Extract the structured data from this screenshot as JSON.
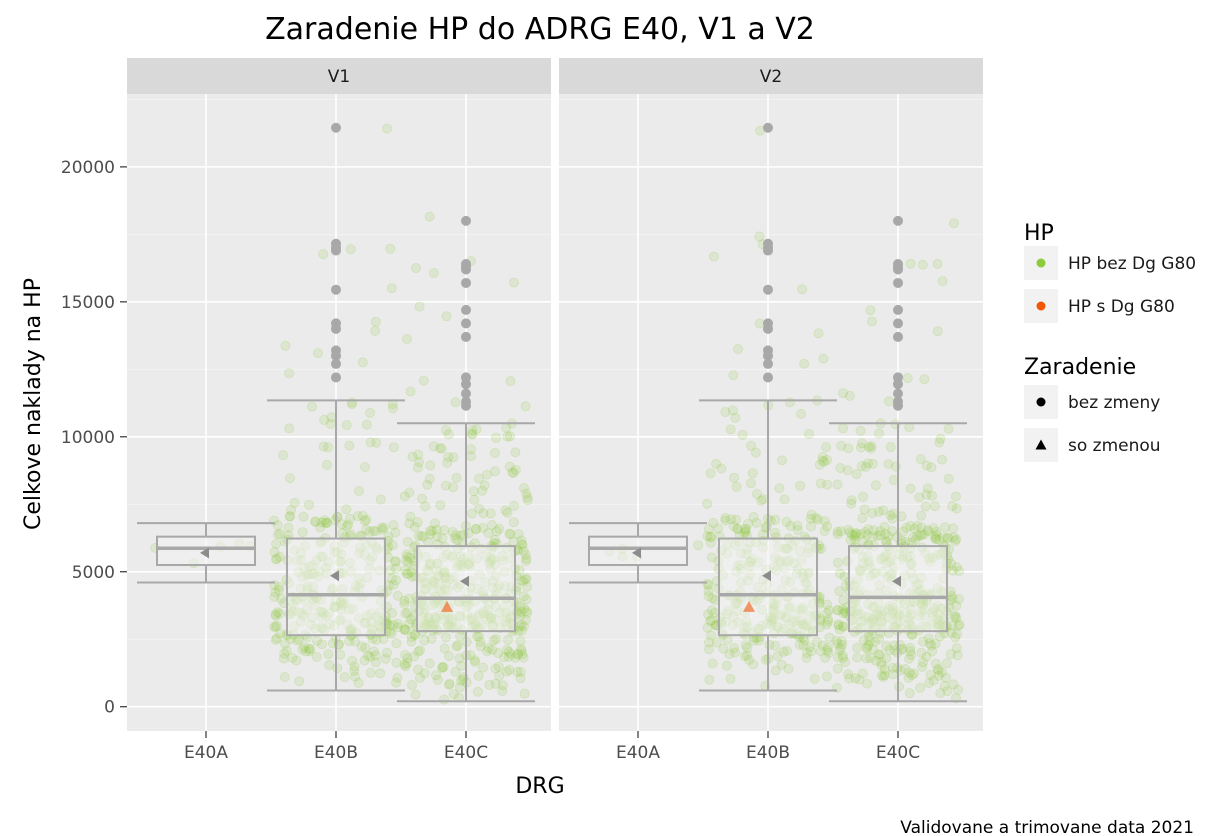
{
  "chart_data": {
    "type": "box",
    "title": "Zaradenie HP do ADRG E40, V1 a V2",
    "xlabel": "DRG",
    "ylabel": "Celkove naklady na HP",
    "caption": "Validovane a trimovane data 2021",
    "ylim": [
      -900,
      22700
    ],
    "yticks": [
      0,
      5000,
      10000,
      15000,
      20000
    ],
    "categories": [
      "E40A",
      "E40B",
      "E40C"
    ],
    "grid": true,
    "legend_placement": "right",
    "panels": [
      {
        "name": "V1",
        "boxes": [
          {
            "category": "E40A",
            "lower_whisker": 4600,
            "q1": 5250,
            "median": 5870,
            "q3": 6300,
            "upper_whisker": 6800,
            "mean": 5700,
            "outliers": []
          },
          {
            "category": "E40B",
            "lower_whisker": 600,
            "q1": 2650,
            "median": 4150,
            "q3": 6230,
            "upper_whisker": 11350,
            "mean": 4850,
            "outliers": [
              12200,
              12700,
              13000,
              13200,
              14000,
              14200,
              15450,
              16900,
              17000,
              17150,
              21450
            ]
          },
          {
            "category": "E40C",
            "lower_whisker": 200,
            "q1": 2800,
            "median": 4020,
            "q3": 5950,
            "upper_whisker": 10500,
            "mean": 4650,
            "outliers": [
              11150,
              11300,
              11600,
              11950,
              12200,
              13700,
              14200,
              14700,
              15700,
              16200,
              16300,
              16400,
              18000
            ]
          }
        ],
        "g80_points": [
          {
            "category": "E40C",
            "value": 3700,
            "zaradenie": "so zmenou"
          }
        ]
      },
      {
        "name": "V2",
        "boxes": [
          {
            "category": "E40A",
            "lower_whisker": 4600,
            "q1": 5250,
            "median": 5870,
            "q3": 6300,
            "upper_whisker": 6800,
            "mean": 5700,
            "outliers": []
          },
          {
            "category": "E40B",
            "lower_whisker": 600,
            "q1": 2650,
            "median": 4150,
            "q3": 6230,
            "upper_whisker": 11350,
            "mean": 4850,
            "outliers": [
              12200,
              12700,
              13000,
              13200,
              14000,
              14200,
              15450,
              16900,
              17000,
              17150,
              21450
            ]
          },
          {
            "category": "E40C",
            "lower_whisker": 200,
            "q1": 2800,
            "median": 4050,
            "q3": 5950,
            "upper_whisker": 10500,
            "mean": 4650,
            "outliers": [
              11150,
              11300,
              11600,
              11950,
              12200,
              13700,
              14200,
              14700,
              15700,
              16200,
              16300,
              16400,
              18000
            ]
          }
        ],
        "g80_points": [
          {
            "category": "E40B",
            "value": 3700,
            "zaradenie": "so zmenou"
          }
        ]
      }
    ],
    "jitter_note_counts": {
      "E40A": 5,
      "E40B": 330,
      "E40C": 460
    },
    "legend": {
      "hp": {
        "title": "HP",
        "entries": [
          {
            "label": "HP bez Dg G80",
            "color": "#8fca3c"
          },
          {
            "label": "HP s Dg G80",
            "color": "#f2560a"
          }
        ]
      },
      "zaradenie": {
        "title": "Zaradenie",
        "entries": [
          {
            "label": "bez zmeny",
            "shape": "circle"
          },
          {
            "label": "so zmenou",
            "shape": "triangle"
          }
        ]
      }
    }
  },
  "colors": {
    "panel_bg": "#ebebeb",
    "strip_bg": "#d9d9d9",
    "grid_major": "#ffffff",
    "box_line": "#a8a8a8",
    "box_fill": "#f2f2f2",
    "outlier": "#a8a8a8",
    "hp_bez": "#8fca3c",
    "hp_s": "#f2560a"
  }
}
